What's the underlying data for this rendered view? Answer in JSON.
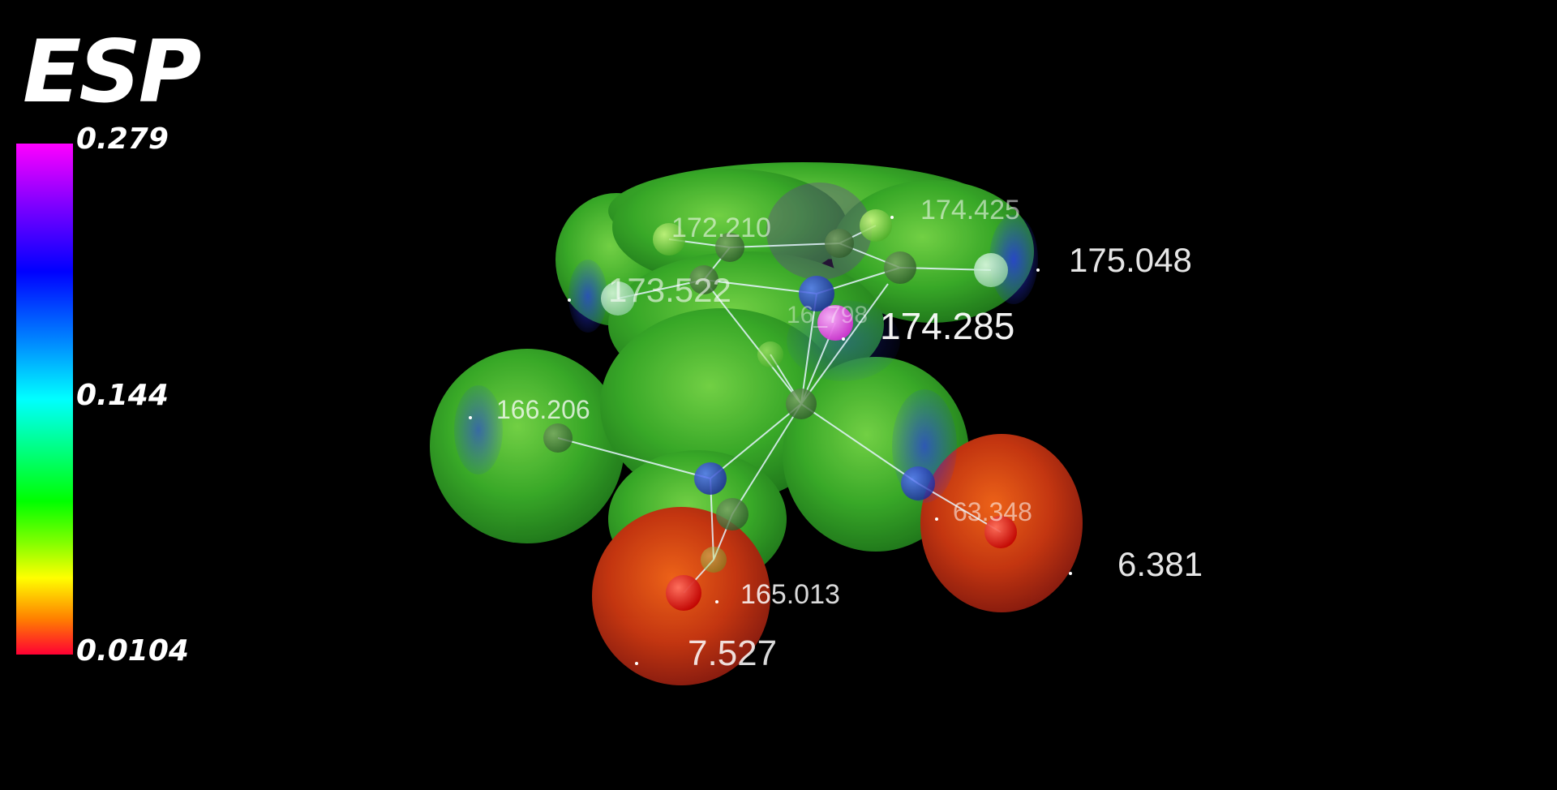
{
  "legend": {
    "title": "ESP",
    "max_label": "0.279",
    "mid_label": "0.144",
    "min_label": "0.0104",
    "colormap": [
      "#ff00ff",
      "#0000ff",
      "#00ffff",
      "#00ff00",
      "#ffff00",
      "#ff0033"
    ]
  },
  "labels": {
    "l1": "172.210",
    "l2": "174.425",
    "l3": "175.048",
    "l4": "173.522",
    "l5": "16_798",
    "l6": "174.285",
    "l7": "166.206",
    "l8": "63.348",
    "l9": "6.381",
    "l10": "165.013",
    "l11": "7.527"
  },
  "colors": {
    "background": "#000000",
    "surface_green": "#3fbf2a",
    "surface_red": "#d23a12",
    "label_text": "#ffffff"
  }
}
